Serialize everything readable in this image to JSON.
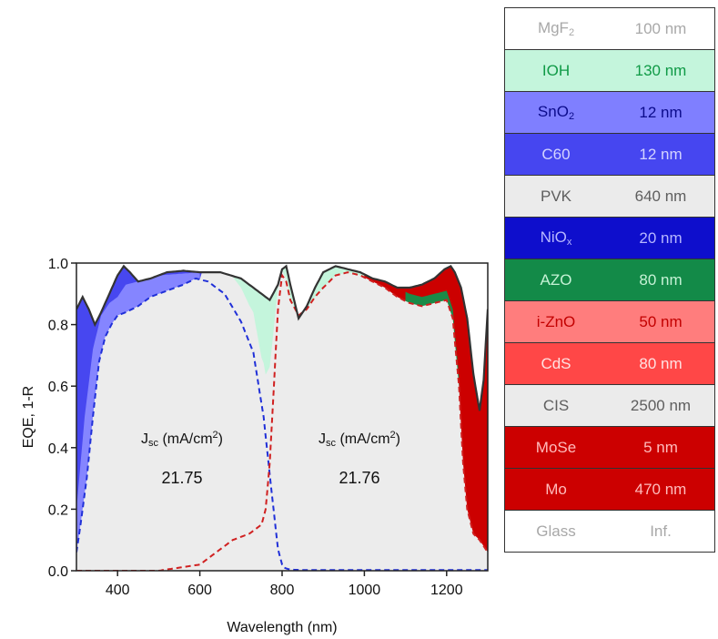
{
  "chart_data": {
    "type": "area",
    "ylabel": "EQE, 1-R",
    "xlabel": "Wavelength (nm)",
    "xlim": [
      300,
      1300
    ],
    "ylim": [
      0,
      1.0
    ],
    "x_ticks": [
      400,
      600,
      800,
      1000,
      1200
    ],
    "y_ticks": [
      "0.0",
      "0.2",
      "0.4",
      "0.6",
      "0.8",
      "1.0"
    ],
    "annotations": [
      {
        "label": "J",
        "sub": "sc",
        "unit": " (mA/cm",
        "sup": "2",
        "close": ")",
        "value": "21.75"
      },
      {
        "label": "J",
        "sub": "sc",
        "unit": " (mA/cm",
        "sup": "2",
        "close": ")",
        "value": "21.76"
      }
    ],
    "colors": {
      "IOH": "#c4f5dc",
      "SnO2": "#7b7bff",
      "C60": "#4747f0",
      "PVK": "#ececec",
      "AZO": "#1a8a48",
      "CIS": "#ececec",
      "Mo": "#cc0000",
      "top_eqe": "#2030d8",
      "bottom_eqe": "#d02020"
    },
    "series": {
      "one_minus_R": {
        "x": [
          300,
          315,
          330,
          345,
          360,
          380,
          400,
          415,
          430,
          450,
          480,
          520,
          560,
          600,
          650,
          700,
          740,
          770,
          790,
          800,
          810,
          820,
          840,
          860,
          880,
          900,
          930,
          960,
          990,
          1020,
          1050,
          1080,
          1110,
          1140,
          1170,
          1195,
          1210,
          1220,
          1235,
          1250,
          1265,
          1280,
          1290,
          1300
        ],
        "y": [
          0.85,
          0.89,
          0.85,
          0.8,
          0.84,
          0.9,
          0.96,
          0.99,
          0.97,
          0.94,
          0.95,
          0.97,
          0.975,
          0.97,
          0.97,
          0.95,
          0.91,
          0.88,
          0.93,
          0.98,
          0.99,
          0.93,
          0.82,
          0.86,
          0.92,
          0.97,
          0.99,
          0.98,
          0.97,
          0.95,
          0.94,
          0.92,
          0.92,
          0.93,
          0.95,
          0.98,
          0.99,
          0.97,
          0.92,
          0.82,
          0.64,
          0.52,
          0.62,
          0.85
        ]
      },
      "top_eqe": {
        "x": [
          300,
          310,
          325,
          340,
          355,
          370,
          385,
          400,
          420,
          450,
          480,
          520,
          560,
          590,
          620,
          660,
          700,
          730,
          755,
          775,
          790,
          800,
          805,
          815,
          830,
          860,
          900,
          1000,
          1300
        ],
        "y": [
          0.06,
          0.15,
          0.3,
          0.5,
          0.68,
          0.76,
          0.8,
          0.83,
          0.84,
          0.86,
          0.89,
          0.91,
          0.93,
          0.95,
          0.94,
          0.9,
          0.81,
          0.71,
          0.5,
          0.25,
          0.07,
          0.02,
          0.01,
          0.005,
          0.003,
          0.002,
          0.002,
          0.002,
          0.002
        ]
      },
      "bottom_eqe": {
        "x": [
          300,
          500,
          600,
          640,
          680,
          720,
          750,
          760,
          770,
          780,
          790,
          800,
          810,
          820,
          840,
          860,
          880,
          900,
          930,
          960,
          990,
          1020,
          1050,
          1080,
          1110,
          1140,
          1170,
          1200,
          1215,
          1230,
          1240,
          1250,
          1265,
          1280,
          1290,
          1300
        ],
        "y": [
          0.0,
          0.0,
          0.02,
          0.06,
          0.1,
          0.12,
          0.15,
          0.2,
          0.35,
          0.6,
          0.85,
          0.96,
          0.94,
          0.88,
          0.83,
          0.85,
          0.89,
          0.92,
          0.96,
          0.97,
          0.96,
          0.94,
          0.92,
          0.89,
          0.87,
          0.86,
          0.87,
          0.88,
          0.82,
          0.6,
          0.35,
          0.2,
          0.12,
          0.1,
          0.08,
          0.06
        ]
      },
      "c60_edge": {
        "x": [
          300,
          320,
          340,
          360,
          380,
          400,
          420,
          450,
          500,
          600
        ],
        "y": [
          0.2,
          0.5,
          0.72,
          0.83,
          0.87,
          0.89,
          0.93,
          0.94,
          0.96,
          0.97
        ]
      }
    }
  },
  "layer_stack": [
    {
      "name": "MgF",
      "sub": "2",
      "thickness": "100 nm",
      "bg": "#ffffff",
      "fg": "#a8a8a8"
    },
    {
      "name": "IOH",
      "sub": "",
      "thickness": "130 nm",
      "bg": "#c4f5dc",
      "fg": "#0f9a46"
    },
    {
      "name": "SnO",
      "sub": "2",
      "thickness": "12 nm",
      "bg": "#7f7fff",
      "fg": "#0b0b8a"
    },
    {
      "name": "C60",
      "sub": "",
      "thickness": "12 nm",
      "bg": "#4646f0",
      "fg": "#d4d4ff"
    },
    {
      "name": "PVK",
      "sub": "",
      "thickness": "640 nm",
      "bg": "#ebebeb",
      "fg": "#5e5e5e"
    },
    {
      "name": "NiO",
      "sub": "x",
      "thickness": "20 nm",
      "bg": "#0e0ecc",
      "fg": "#b7b7ff"
    },
    {
      "name": "AZO",
      "sub": "",
      "thickness": "80 nm",
      "bg": "#138a48",
      "fg": "#c6f2d6"
    },
    {
      "name": "i-ZnO",
      "sub": "",
      "thickness": "50 nm",
      "bg": "#ff7d7d",
      "fg": "#c30000"
    },
    {
      "name": "CdS",
      "sub": "",
      "thickness": "80 nm",
      "bg": "#ff4747",
      "fg": "#ffe2e2"
    },
    {
      "name": "CIS",
      "sub": "",
      "thickness": "2500 nm",
      "bg": "#ebebeb",
      "fg": "#5e5e5e"
    },
    {
      "name": "MoSe",
      "sub": "",
      "thickness": "5 nm",
      "bg": "#cc0000",
      "fg": "#ffbcbc"
    },
    {
      "name": "Mo",
      "sub": "",
      "thickness": "470 nm",
      "bg": "#cc0000",
      "fg": "#ffbcbc"
    },
    {
      "name": "Glass",
      "sub": "",
      "thickness": "Inf.",
      "bg": "#ffffff",
      "fg": "#a8a8a8"
    }
  ]
}
